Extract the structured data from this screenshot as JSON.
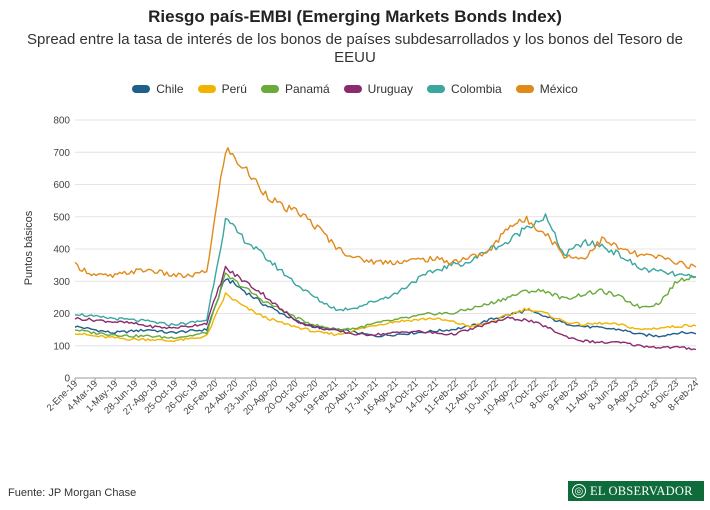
{
  "title": "Riesgo país-EMBI (Emerging Markets Bonds Index)",
  "subtitle": "Spread entre la tasa de interés de los bonos de países subdesarrollados y los bonos del Tesoro de EEUU",
  "source": "Fuente: JP Morgan Chase",
  "logo_text": "EL OBSERVADOR",
  "chart_data": {
    "type": "line",
    "ylabel": "Puntos básicos",
    "xlabel": "",
    "ylim": [
      0,
      800
    ],
    "yticks": [
      0,
      100,
      200,
      300,
      400,
      500,
      600,
      700,
      800
    ],
    "grid": "horizontal",
    "legend_position": "top-center",
    "x_ticks": [
      "2-Ene-19",
      "4-Mar-19",
      "1-May-19",
      "28-Jun-19",
      "27-Ago-19",
      "25-Oct-19",
      "26-Dic-19",
      "26-Feb-20",
      "24-Abr-20",
      "23-Jun-20",
      "20-Ago-20",
      "20-Oct-20",
      "18-Dic-20",
      "19-Feb-21",
      "20-Abr-21",
      "17-Jun-21",
      "16-Ago-21",
      "14-Oct-21",
      "14-Dic-21",
      "11-Feb-22",
      "12-Abr-22",
      "10-Jun-22",
      "10-Ago-22",
      "7-Oct-22",
      "8-Dic-22",
      "9-Feb-23",
      "11-Abr-23",
      "8-Jun-23",
      "9-Ago-23",
      "11-Oct-23",
      "8-Dic-23",
      "8-Feb-24"
    ],
    "x": [
      "Ene-19",
      "Mar-19",
      "May-19",
      "Jul-19",
      "Sep-19",
      "Nov-19",
      "Ene-20",
      "Feb-20",
      "Mar-20",
      "Abr-20",
      "May-20",
      "Jun-20",
      "Ago-20",
      "Oct-20",
      "Dic-20",
      "Feb-21",
      "Abr-21",
      "Jun-21",
      "Ago-21",
      "Oct-21",
      "Dic-21",
      "Feb-22",
      "Abr-22",
      "Jun-22",
      "Ago-22",
      "Oct-22",
      "Dic-22",
      "Feb-23",
      "Abr-23",
      "Jun-23",
      "Ago-23",
      "Oct-23",
      "Dic-23",
      "Feb-24"
    ],
    "series": [
      {
        "name": "Chile",
        "color": "#1f5f8b",
        "values": [
          160,
          150,
          140,
          145,
          150,
          140,
          145,
          150,
          310,
          270,
          230,
          200,
          170,
          155,
          150,
          140,
          130,
          135,
          140,
          145,
          150,
          160,
          180,
          195,
          210,
          190,
          170,
          160,
          155,
          150,
          135,
          130,
          140,
          140
        ]
      },
      {
        "name": "Perú",
        "color": "#f0b400",
        "values": [
          140,
          130,
          125,
          120,
          120,
          115,
          120,
          130,
          260,
          220,
          190,
          170,
          155,
          140,
          135,
          150,
          165,
          175,
          180,
          185,
          175,
          160,
          170,
          195,
          215,
          200,
          175,
          165,
          170,
          165,
          150,
          155,
          160,
          165
        ]
      },
      {
        "name": "Panamá",
        "color": "#6aaa3a",
        "values": [
          150,
          140,
          135,
          130,
          130,
          125,
          130,
          140,
          320,
          280,
          240,
          210,
          180,
          160,
          150,
          155,
          170,
          180,
          190,
          200,
          200,
          215,
          230,
          250,
          270,
          270,
          245,
          260,
          270,
          250,
          220,
          230,
          300,
          320
        ]
      },
      {
        "name": "Uruguay",
        "color": "#8b2a6e",
        "values": [
          185,
          180,
          175,
          170,
          160,
          155,
          160,
          170,
          340,
          300,
          260,
          210,
          170,
          155,
          145,
          135,
          135,
          140,
          145,
          140,
          135,
          150,
          170,
          185,
          180,
          160,
          130,
          115,
          110,
          110,
          100,
          95,
          95,
          90
        ]
      },
      {
        "name": "Colombia",
        "color": "#3aa6a0",
        "values": [
          200,
          190,
          185,
          180,
          175,
          165,
          170,
          180,
          490,
          430,
          380,
          330,
          280,
          240,
          210,
          220,
          240,
          260,
          300,
          330,
          350,
          360,
          400,
          420,
          470,
          500,
          380,
          420,
          410,
          380,
          340,
          330,
          320,
          310
        ]
      },
      {
        "name": "México",
        "color": "#e08a1a",
        "values": [
          350,
          320,
          315,
          330,
          335,
          320,
          315,
          330,
          710,
          650,
          580,
          530,
          510,
          460,
          400,
          370,
          360,
          360,
          365,
          370,
          360,
          375,
          390,
          470,
          490,
          450,
          380,
          370,
          430,
          400,
          380,
          375,
          360,
          340
        ]
      }
    ]
  }
}
